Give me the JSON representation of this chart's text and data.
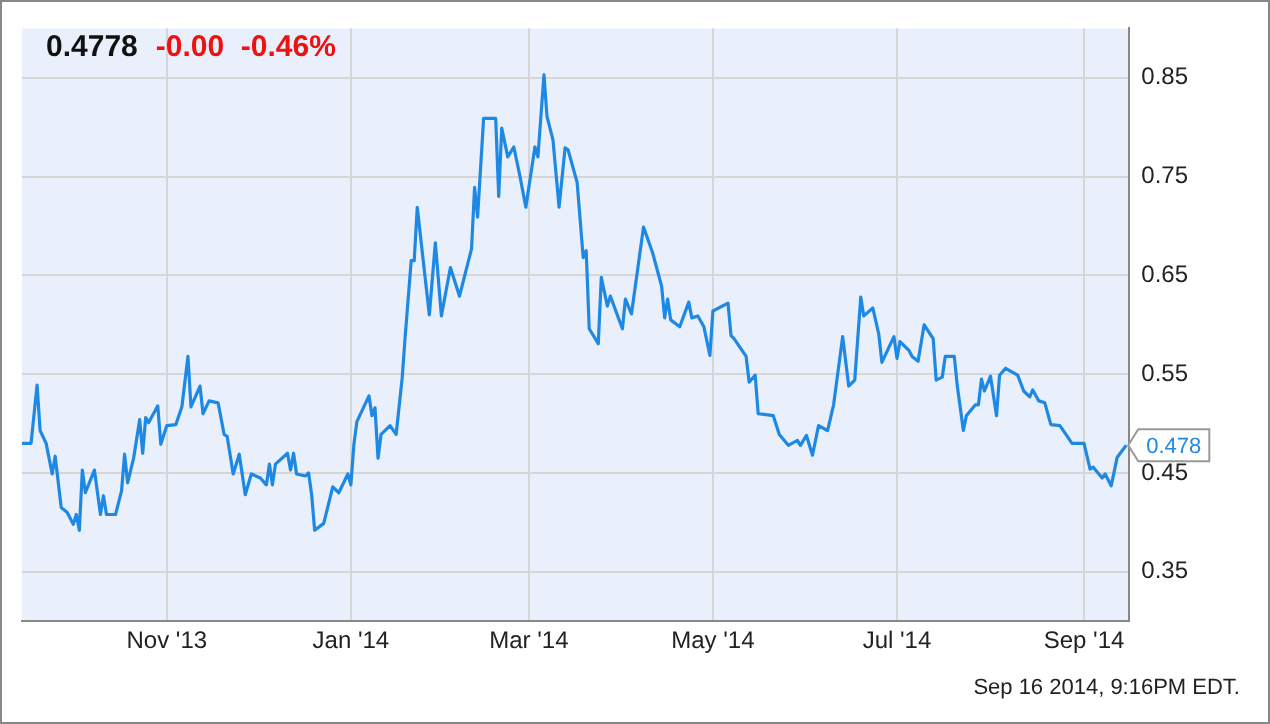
{
  "chart_data": {
    "type": "line",
    "title": "0.4778",
    "subtitle": "-0.00  -0.46%",
    "x": [
      "2013-09-14",
      "2013-09-17",
      "2013-09-19",
      "2013-09-20",
      "2013-09-22",
      "2013-09-24",
      "2013-09-25",
      "2013-09-27",
      "2013-09-29",
      "2013-10-01",
      "2013-10-02",
      "2013-10-03",
      "2013-10-04",
      "2013-10-05",
      "2013-10-08",
      "2013-10-10",
      "2013-10-11",
      "2013-10-12",
      "2013-10-15",
      "2013-10-17",
      "2013-10-18",
      "2013-10-19",
      "2013-10-21",
      "2013-10-23",
      "2013-10-24",
      "2013-10-25",
      "2013-10-26",
      "2013-10-29",
      "2013-10-30",
      "2013-11-01",
      "2013-11-04",
      "2013-11-06",
      "2013-11-08",
      "2013-11-09",
      "2013-11-12",
      "2013-11-13",
      "2013-11-15",
      "2013-11-18",
      "2013-11-20",
      "2013-11-21",
      "2013-11-23",
      "2013-11-25",
      "2013-11-27",
      "2013-11-29",
      "2013-12-02",
      "2013-12-04",
      "2013-12-05",
      "2013-12-06",
      "2013-12-07",
      "2013-12-11",
      "2013-12-12",
      "2013-12-13",
      "2013-12-14",
      "2013-12-17",
      "2013-12-18",
      "2013-12-19",
      "2013-12-20",
      "2013-12-23",
      "2013-12-26",
      "2013-12-28",
      "2013-12-31",
      "2014-01-01",
      "2014-01-02",
      "2014-01-03",
      "2014-01-07",
      "2014-01-08",
      "2014-01-09",
      "2014-01-10",
      "2014-01-11",
      "2014-01-14",
      "2014-01-16",
      "2014-01-18",
      "2014-01-19",
      "2014-01-21",
      "2014-01-22",
      "2014-01-23",
      "2014-01-27",
      "2014-01-29",
      "2014-01-31",
      "2014-02-03",
      "2014-02-06",
      "2014-02-10",
      "2014-02-11",
      "2014-02-12",
      "2014-02-14",
      "2014-02-18",
      "2014-02-19",
      "2014-02-20",
      "2014-02-22",
      "2014-02-24",
      "2014-02-26",
      "2014-02-28",
      "2014-03-03",
      "2014-03-04",
      "2014-03-06",
      "2014-03-07",
      "2014-03-09",
      "2014-03-11",
      "2014-03-13",
      "2014-03-14",
      "2014-03-17",
      "2014-03-19",
      "2014-03-20",
      "2014-03-21",
      "2014-03-24",
      "2014-03-25",
      "2014-03-27",
      "2014-03-28",
      "2014-04-01",
      "2014-04-02",
      "2014-04-04",
      "2014-04-08",
      "2014-04-11",
      "2014-04-14",
      "2014-04-15",
      "2014-04-16",
      "2014-04-17",
      "2014-04-20",
      "2014-04-23",
      "2014-04-24",
      "2014-04-26",
      "2014-04-28",
      "2014-04-30",
      "2014-05-01",
      "2014-05-06",
      "2014-05-07",
      "2014-05-08",
      "2014-05-12",
      "2014-05-13",
      "2014-05-15",
      "2014-05-16",
      "2014-05-21",
      "2014-05-23",
      "2014-05-26",
      "2014-05-29",
      "2014-05-30",
      "2014-06-01",
      "2014-06-03",
      "2014-06-05",
      "2014-06-08",
      "2014-06-10",
      "2014-06-13",
      "2014-06-15",
      "2014-06-17",
      "2014-06-19",
      "2014-06-20",
      "2014-06-23",
      "2014-06-25",
      "2014-06-26",
      "2014-06-30",
      "2014-07-01",
      "2014-07-02",
      "2014-07-05",
      "2014-07-06",
      "2014-07-08",
      "2014-07-10",
      "2014-07-13",
      "2014-07-14",
      "2014-07-16",
      "2014-07-17",
      "2014-07-20",
      "2014-07-21",
      "2014-07-23",
      "2014-07-24",
      "2014-07-27",
      "2014-07-28",
      "2014-07-29",
      "2014-07-30",
      "2014-08-01",
      "2014-08-03",
      "2014-08-04",
      "2014-08-06",
      "2014-08-10",
      "2014-08-12",
      "2014-08-14",
      "2014-08-15",
      "2014-08-17",
      "2014-08-19",
      "2014-08-21",
      "2014-08-24",
      "2014-08-26",
      "2014-08-28",
      "2014-09-01",
      "2014-09-03",
      "2014-09-04",
      "2014-09-07",
      "2014-09-08",
      "2014-09-10",
      "2014-09-12",
      "2014-09-15"
    ],
    "series": [
      {
        "color": "#1e88e5",
        "values": [
          0.48,
          0.48,
          0.539,
          0.493,
          0.48,
          0.449,
          0.467,
          0.415,
          0.41,
          0.398,
          0.408,
          0.392,
          0.453,
          0.43,
          0.453,
          0.408,
          0.427,
          0.408,
          0.408,
          0.432,
          0.469,
          0.44,
          0.465,
          0.504,
          0.47,
          0.506,
          0.501,
          0.518,
          0.479,
          0.498,
          0.499,
          0.517,
          0.568,
          0.517,
          0.538,
          0.51,
          0.523,
          0.521,
          0.489,
          0.487,
          0.449,
          0.469,
          0.428,
          0.449,
          0.445,
          0.438,
          0.459,
          0.438,
          0.459,
          0.47,
          0.453,
          0.47,
          0.449,
          0.447,
          0.45,
          0.428,
          0.392,
          0.399,
          0.436,
          0.43,
          0.449,
          0.438,
          0.479,
          0.502,
          0.528,
          0.508,
          0.516,
          0.465,
          0.489,
          0.498,
          0.489,
          0.546,
          0.588,
          0.665,
          0.665,
          0.719,
          0.61,
          0.683,
          0.609,
          0.658,
          0.629,
          0.677,
          0.739,
          0.709,
          0.809,
          0.809,
          0.73,
          0.799,
          0.77,
          0.78,
          0.751,
          0.719,
          0.78,
          0.77,
          0.853,
          0.811,
          0.787,
          0.719,
          0.779,
          0.777,
          0.744,
          0.668,
          0.675,
          0.596,
          0.581,
          0.648,
          0.619,
          0.629,
          0.596,
          0.626,
          0.611,
          0.699,
          0.673,
          0.639,
          0.607,
          0.626,
          0.605,
          0.598,
          0.623,
          0.607,
          0.609,
          0.598,
          0.569,
          0.614,
          0.622,
          0.589,
          0.586,
          0.568,
          0.542,
          0.549,
          0.51,
          0.508,
          0.489,
          0.478,
          0.483,
          0.478,
          0.488,
          0.468,
          0.498,
          0.493,
          0.519,
          0.588,
          0.538,
          0.544,
          0.628,
          0.609,
          0.617,
          0.59,
          0.562,
          0.588,
          0.566,
          0.583,
          0.574,
          0.568,
          0.563,
          0.6,
          0.586,
          0.544,
          0.547,
          0.568,
          0.568,
          0.538,
          0.493,
          0.508,
          0.519,
          0.519,
          0.545,
          0.533,
          0.548,
          0.508,
          0.549,
          0.556,
          0.549,
          0.533,
          0.527,
          0.534,
          0.523,
          0.521,
          0.499,
          0.498,
          0.489,
          0.48,
          0.48,
          0.454,
          0.456,
          0.445,
          0.449,
          0.437,
          0.466,
          0.478
        ]
      }
    ],
    "xlim": [
      "2013-09-14",
      "2014-09-16"
    ],
    "xticks": [
      {
        "value": "2013-11-01",
        "label": "Nov '13"
      },
      {
        "value": "2014-01-01",
        "label": "Jan '14"
      },
      {
        "value": "2014-03-01",
        "label": "Mar '14"
      },
      {
        "value": "2014-05-01",
        "label": "May '14"
      },
      {
        "value": "2014-07-01",
        "label": "Jul '14"
      },
      {
        "value": "2014-09-01",
        "label": "Sep '14"
      }
    ],
    "ylim": [
      0.3,
      0.9
    ],
    "yticks": [
      0.35,
      0.45,
      0.55,
      0.65,
      0.75,
      0.85
    ],
    "grid": true,
    "legend": false,
    "marker": "none",
    "line_style": "solid",
    "annotations": [
      {
        "text": "0.478",
        "x": "2014-09-15",
        "y": 0.478
      },
      "Sep 16 2014, 9:16PM EDT."
    ]
  }
}
